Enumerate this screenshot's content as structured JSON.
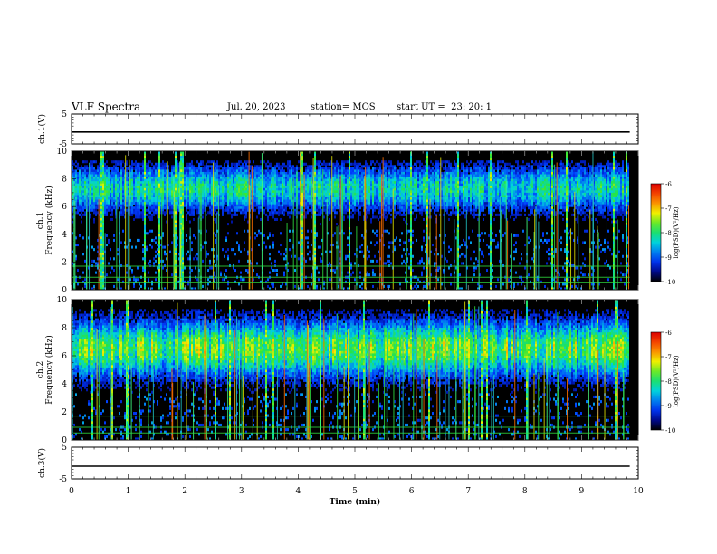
{
  "header": {
    "title": "VLF Spectra",
    "date": "Jul. 20, 2023",
    "station": "station= MOS",
    "start": "start UT =  23: 20: 1"
  },
  "chart_data": [
    {
      "type": "line",
      "panel": "ch1-voltage",
      "ylabel": "ch.1(V)",
      "ylim": [
        -5,
        5
      ],
      "yticks": [
        "-5",
        "5"
      ],
      "x": [
        0,
        9.85
      ],
      "series": [
        {
          "values": [
            -1,
            -1
          ]
        }
      ]
    },
    {
      "type": "heatmap",
      "panel": "ch1-spectrogram",
      "ylabel": "ch.1\nFrequency (kHz)",
      "ylim": [
        0,
        10
      ],
      "yticks": [
        "0",
        "2",
        "4",
        "6",
        "8",
        "10"
      ],
      "xlim": [
        0,
        9.85
      ],
      "band_khz": [
        5,
        9
      ],
      "colorbar": {
        "label": "log(PSD)(V²/Hz)",
        "range": [
          -10,
          -6
        ],
        "ticks": [
          "-6",
          "-7",
          "-8",
          "-9",
          "-10"
        ]
      }
    },
    {
      "type": "heatmap",
      "panel": "ch2-spectrogram",
      "ylabel": "ch.2\nFrequency (kHz)",
      "ylim": [
        0,
        10
      ],
      "yticks": [
        "0",
        "2",
        "4",
        "6",
        "8",
        "10"
      ],
      "xlim": [
        0,
        9.85
      ],
      "band_khz": [
        4,
        9
      ],
      "colorbar": {
        "label": "log(PSD)(V²/Hz)",
        "range": [
          -10,
          -6
        ],
        "ticks": [
          "-6",
          "-7",
          "-8",
          "-9",
          "-10"
        ]
      }
    },
    {
      "type": "line",
      "panel": "ch3-voltage",
      "ylabel": "ch.3(V)",
      "ylim": [
        -5,
        5
      ],
      "yticks": [
        "-5",
        "5"
      ],
      "x": [
        0,
        9.85
      ],
      "series": [
        {
          "values": [
            -1,
            -1
          ]
        }
      ]
    }
  ],
  "xaxis": {
    "label": "Time (min)",
    "ticks": [
      "0",
      "1",
      "2",
      "3",
      "4",
      "5",
      "6",
      "7",
      "8",
      "9",
      "10"
    ],
    "xlim": [
      0,
      10
    ]
  }
}
